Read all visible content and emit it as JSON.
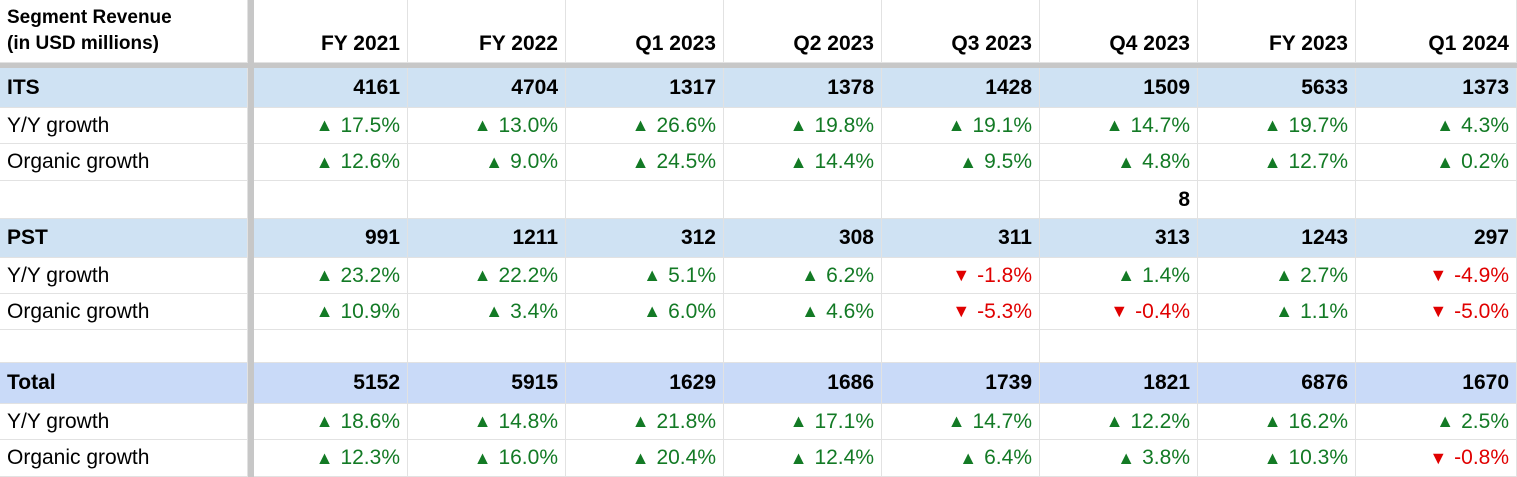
{
  "header": {
    "title_line1": "Segment Revenue",
    "title_line2": "(in USD millions)",
    "periods": [
      "FY 2021",
      "FY 2022",
      "Q1 2023",
      "Q2 2023",
      "Q3 2023",
      "Q4 2023",
      "FY 2023",
      "Q1 2024"
    ]
  },
  "colors": {
    "positive": "#137a25",
    "negative": "#e00000",
    "segment_row": "#cfe2f3",
    "total_row": "#c9daf8"
  },
  "rows": [
    {
      "label": "ITS",
      "kind": "seg",
      "values": [
        "4161",
        "4704",
        "1317",
        "1378",
        "1428",
        "1509",
        "5633",
        "1373"
      ]
    },
    {
      "label": "Y/Y growth",
      "kind": "pct",
      "values": [
        "17.5%",
        "13.0%",
        "26.6%",
        "19.8%",
        "19.1%",
        "14.7%",
        "19.7%",
        "4.3%"
      ]
    },
    {
      "label": "Organic growth",
      "kind": "pct",
      "values": [
        "12.6%",
        "9.0%",
        "24.5%",
        "14.4%",
        "9.5%",
        "4.8%",
        "12.7%",
        "0.2%"
      ]
    },
    {
      "label": "",
      "kind": "blank",
      "values": [
        "",
        "",
        "",
        "",
        "",
        "8",
        "",
        ""
      ]
    },
    {
      "label": "PST",
      "kind": "seg",
      "values": [
        "991",
        "1211",
        "312",
        "308",
        "311",
        "313",
        "1243",
        "297"
      ]
    },
    {
      "label": "Y/Y growth",
      "kind": "pct",
      "values": [
        "23.2%",
        "22.2%",
        "5.1%",
        "6.2%",
        "-1.8%",
        "1.4%",
        "2.7%",
        "-4.9%"
      ]
    },
    {
      "label": "Organic growth",
      "kind": "pct",
      "values": [
        "10.9%",
        "3.4%",
        "6.0%",
        "4.6%",
        "-5.3%",
        "-0.4%",
        "1.1%",
        "-5.0%"
      ]
    },
    {
      "label": "",
      "kind": "blank",
      "values": [
        "",
        "",
        "",
        "",
        "",
        "",
        "",
        ""
      ]
    },
    {
      "label": "Total",
      "kind": "total",
      "values": [
        "5152",
        "5915",
        "1629",
        "1686",
        "1739",
        "1821",
        "6876",
        "1670"
      ]
    },
    {
      "label": "Y/Y growth",
      "kind": "pct",
      "values": [
        "18.6%",
        "14.8%",
        "21.8%",
        "17.1%",
        "14.7%",
        "12.2%",
        "16.2%",
        "2.5%"
      ]
    },
    {
      "label": "Organic growth",
      "kind": "pct",
      "values": [
        "12.3%",
        "16.0%",
        "20.4%",
        "12.4%",
        "6.4%",
        "3.8%",
        "10.3%",
        "-0.8%"
      ]
    }
  ],
  "chart_data": {
    "type": "table",
    "title": "Segment Revenue (in USD millions)",
    "columns": [
      "FY 2021",
      "FY 2022",
      "Q1 2023",
      "Q2 2023",
      "Q3 2023",
      "Q4 2023",
      "FY 2023",
      "Q1 2024"
    ],
    "series": [
      {
        "name": "ITS",
        "values": [
          4161,
          4704,
          1317,
          1378,
          1428,
          1509,
          5633,
          1373
        ]
      },
      {
        "name": "ITS Y/Y growth",
        "values": [
          17.5,
          13.0,
          26.6,
          19.8,
          19.1,
          14.7,
          19.7,
          4.3
        ]
      },
      {
        "name": "ITS Organic growth",
        "values": [
          12.6,
          9.0,
          24.5,
          14.4,
          9.5,
          4.8,
          12.7,
          0.2
        ]
      },
      {
        "name": "PST",
        "values": [
          991,
          1211,
          312,
          308,
          311,
          313,
          1243,
          297
        ]
      },
      {
        "name": "PST Y/Y growth",
        "values": [
          23.2,
          22.2,
          5.1,
          6.2,
          -1.8,
          1.4,
          2.7,
          -4.9
        ]
      },
      {
        "name": "PST Organic growth",
        "values": [
          10.9,
          3.4,
          6.0,
          4.6,
          -5.3,
          -0.4,
          1.1,
          -5.0
        ]
      },
      {
        "name": "Total",
        "values": [
          5152,
          5915,
          1629,
          1686,
          1739,
          1821,
          6876,
          1670
        ]
      },
      {
        "name": "Total Y/Y growth",
        "values": [
          18.6,
          14.8,
          21.8,
          17.1,
          14.7,
          12.2,
          16.2,
          2.5
        ]
      },
      {
        "name": "Total Organic growth",
        "values": [
          12.3,
          16.0,
          20.4,
          12.4,
          6.4,
          3.8,
          10.3,
          -0.8
        ]
      }
    ]
  }
}
